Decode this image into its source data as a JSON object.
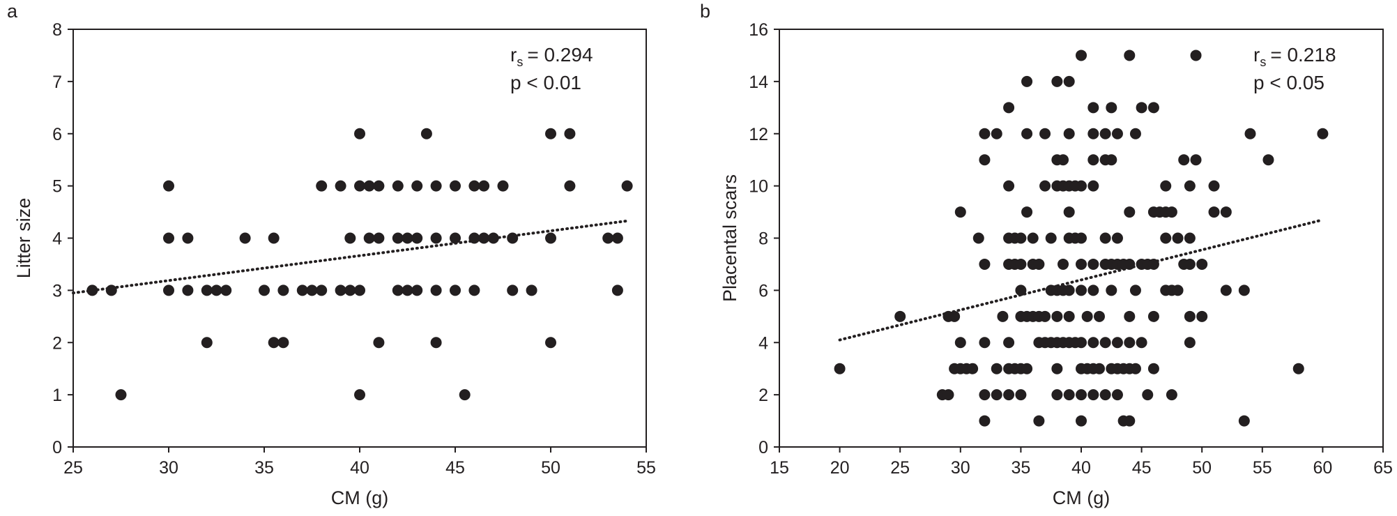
{
  "chart_data": [
    {
      "panel": "a",
      "type": "scatter",
      "xlabel": "CM (g)",
      "ylabel": "Litter size",
      "xlim": [
        25,
        55
      ],
      "ylim": [
        0,
        8
      ],
      "xticks": [
        25,
        30,
        35,
        40,
        45,
        50,
        55
      ],
      "yticks": [
        0,
        1,
        2,
        3,
        4,
        5,
        6,
        7,
        8
      ],
      "grid": false,
      "annotations": {
        "rs_symbol": "r",
        "rs_subscript": "s",
        "rs_value": "= 0.294",
        "p_text": "p < 0.01"
      },
      "trendline": {
        "x": [
          25,
          54
        ],
        "y": [
          2.95,
          4.33
        ]
      },
      "points": [
        [
          26,
          3
        ],
        [
          27,
          3
        ],
        [
          27.5,
          1
        ],
        [
          30,
          5
        ],
        [
          30,
          4
        ],
        [
          30,
          3
        ],
        [
          31,
          4
        ],
        [
          31,
          3
        ],
        [
          32,
          3
        ],
        [
          32,
          2
        ],
        [
          32.5,
          3
        ],
        [
          33,
          3
        ],
        [
          34,
          4
        ],
        [
          35,
          3
        ],
        [
          35.5,
          4
        ],
        [
          35.5,
          2
        ],
        [
          36,
          3
        ],
        [
          36,
          2
        ],
        [
          37,
          3
        ],
        [
          37.5,
          3
        ],
        [
          38,
          5
        ],
        [
          38,
          3
        ],
        [
          39,
          5
        ],
        [
          39,
          3
        ],
        [
          39.5,
          4
        ],
        [
          39.5,
          3
        ],
        [
          40,
          6
        ],
        [
          40,
          5
        ],
        [
          40,
          3
        ],
        [
          40,
          1
        ],
        [
          40.5,
          5
        ],
        [
          40.5,
          4
        ],
        [
          41,
          5
        ],
        [
          41,
          4
        ],
        [
          41,
          2
        ],
        [
          42,
          5
        ],
        [
          42,
          4
        ],
        [
          42,
          3
        ],
        [
          42.5,
          4
        ],
        [
          42.5,
          3
        ],
        [
          43,
          5
        ],
        [
          43,
          4
        ],
        [
          43,
          3
        ],
        [
          43.5,
          6
        ],
        [
          44,
          5
        ],
        [
          44,
          4
        ],
        [
          44,
          3
        ],
        [
          44,
          2
        ],
        [
          45,
          5
        ],
        [
          45,
          4
        ],
        [
          45,
          3
        ],
        [
          45.5,
          1
        ],
        [
          46,
          5
        ],
        [
          46,
          4
        ],
        [
          46,
          3
        ],
        [
          46.5,
          5
        ],
        [
          46.5,
          4
        ],
        [
          47,
          4
        ],
        [
          47.5,
          5
        ],
        [
          48,
          4
        ],
        [
          48,
          3
        ],
        [
          49,
          3
        ],
        [
          50,
          6
        ],
        [
          50,
          4
        ],
        [
          50,
          2
        ],
        [
          51,
          6
        ],
        [
          51,
          5
        ],
        [
          53,
          4
        ],
        [
          53.5,
          4
        ],
        [
          53.5,
          3
        ],
        [
          54,
          5
        ]
      ]
    },
    {
      "panel": "b",
      "type": "scatter",
      "xlabel": "CM (g)",
      "ylabel": "Placental scars",
      "xlim": [
        15,
        65
      ],
      "ylim": [
        0,
        16
      ],
      "xticks": [
        15,
        20,
        25,
        30,
        35,
        40,
        45,
        50,
        55,
        60,
        65
      ],
      "yticks": [
        0,
        2,
        4,
        6,
        8,
        10,
        12,
        14,
        16
      ],
      "grid": false,
      "annotations": {
        "rs_symbol": "r",
        "rs_subscript": "s",
        "rs_value": "= 0.218",
        "p_text": "p < 0.05"
      },
      "trendline": {
        "x": [
          20,
          60
        ],
        "y": [
          4.1,
          8.7
        ]
      },
      "points": [
        [
          20,
          3
        ],
        [
          25,
          5
        ],
        [
          28.5,
          2
        ],
        [
          29,
          2
        ],
        [
          29,
          5
        ],
        [
          29.5,
          3
        ],
        [
          29.5,
          5
        ],
        [
          30,
          3
        ],
        [
          30,
          4
        ],
        [
          30,
          9
        ],
        [
          30.5,
          3
        ],
        [
          31,
          3
        ],
        [
          31.5,
          8
        ],
        [
          32,
          1
        ],
        [
          32,
          2
        ],
        [
          32,
          4
        ],
        [
          32,
          7
        ],
        [
          32,
          11
        ],
        [
          32,
          12
        ],
        [
          33,
          2
        ],
        [
          33,
          3
        ],
        [
          33,
          12
        ],
        [
          33.5,
          5
        ],
        [
          34,
          2
        ],
        [
          34,
          3
        ],
        [
          34,
          4
        ],
        [
          34,
          7
        ],
        [
          34,
          8
        ],
        [
          34,
          10
        ],
        [
          34,
          13
        ],
        [
          34.5,
          3
        ],
        [
          34.5,
          7
        ],
        [
          34.5,
          8
        ],
        [
          35,
          2
        ],
        [
          35,
          3
        ],
        [
          35,
          5
        ],
        [
          35,
          6
        ],
        [
          35,
          7
        ],
        [
          35,
          8
        ],
        [
          35.5,
          3
        ],
        [
          35.5,
          5
        ],
        [
          35.5,
          9
        ],
        [
          35.5,
          12
        ],
        [
          35.5,
          14
        ],
        [
          36,
          5
        ],
        [
          36,
          7
        ],
        [
          36,
          8
        ],
        [
          36.5,
          1
        ],
        [
          36.5,
          4
        ],
        [
          36.5,
          5
        ],
        [
          36.5,
          7
        ],
        [
          37,
          4
        ],
        [
          37,
          5
        ],
        [
          37,
          10
        ],
        [
          37,
          12
        ],
        [
          37.5,
          4
        ],
        [
          37.5,
          6
        ],
        [
          37.5,
          8
        ],
        [
          38,
          2
        ],
        [
          38,
          3
        ],
        [
          38,
          4
        ],
        [
          38,
          5
        ],
        [
          38,
          6
        ],
        [
          38,
          10
        ],
        [
          38,
          11
        ],
        [
          38,
          14
        ],
        [
          38.5,
          4
        ],
        [
          38.5,
          6
        ],
        [
          38.5,
          7
        ],
        [
          38.5,
          10
        ],
        [
          38.5,
          11
        ],
        [
          39,
          2
        ],
        [
          39,
          4
        ],
        [
          39,
          5
        ],
        [
          39,
          6
        ],
        [
          39,
          8
        ],
        [
          39,
          9
        ],
        [
          39,
          10
        ],
        [
          39,
          12
        ],
        [
          39,
          14
        ],
        [
          39.5,
          4
        ],
        [
          39.5,
          8
        ],
        [
          39.5,
          10
        ],
        [
          40,
          1
        ],
        [
          40,
          2
        ],
        [
          40,
          3
        ],
        [
          40,
          4
        ],
        [
          40,
          6
        ],
        [
          40,
          7
        ],
        [
          40,
          8
        ],
        [
          40,
          10
        ],
        [
          40,
          15
        ],
        [
          40.5,
          3
        ],
        [
          40.5,
          5
        ],
        [
          41,
          2
        ],
        [
          41,
          3
        ],
        [
          41,
          4
        ],
        [
          41,
          6
        ],
        [
          41,
          7
        ],
        [
          41,
          10
        ],
        [
          41,
          11
        ],
        [
          41,
          12
        ],
        [
          41,
          13
        ],
        [
          41.5,
          3
        ],
        [
          41.5,
          5
        ],
        [
          42,
          2
        ],
        [
          42,
          4
        ],
        [
          42,
          7
        ],
        [
          42,
          8
        ],
        [
          42,
          11
        ],
        [
          42,
          12
        ],
        [
          42.5,
          3
        ],
        [
          42.5,
          6
        ],
        [
          42.5,
          7
        ],
        [
          42.5,
          11
        ],
        [
          42.5,
          13
        ],
        [
          43,
          2
        ],
        [
          43,
          3
        ],
        [
          43,
          4
        ],
        [
          43,
          7
        ],
        [
          43,
          8
        ],
        [
          43,
          12
        ],
        [
          43.5,
          1
        ],
        [
          43.5,
          3
        ],
        [
          43.5,
          7
        ],
        [
          44,
          1
        ],
        [
          44,
          3
        ],
        [
          44,
          4
        ],
        [
          44,
          5
        ],
        [
          44,
          7
        ],
        [
          44,
          9
        ],
        [
          44,
          15
        ],
        [
          44.5,
          3
        ],
        [
          44.5,
          6
        ],
        [
          44.5,
          12
        ],
        [
          45,
          4
        ],
        [
          45,
          7
        ],
        [
          45,
          13
        ],
        [
          45.5,
          2
        ],
        [
          45.5,
          7
        ],
        [
          46,
          3
        ],
        [
          46,
          5
        ],
        [
          46,
          7
        ],
        [
          46,
          9
        ],
        [
          46,
          13
        ],
        [
          46.5,
          9
        ],
        [
          47,
          6
        ],
        [
          47,
          8
        ],
        [
          47,
          9
        ],
        [
          47,
          10
        ],
        [
          47.5,
          2
        ],
        [
          47.5,
          6
        ],
        [
          47.5,
          9
        ],
        [
          48,
          6
        ],
        [
          48,
          8
        ],
        [
          48.5,
          7
        ],
        [
          48.5,
          11
        ],
        [
          49,
          4
        ],
        [
          49,
          5
        ],
        [
          49,
          7
        ],
        [
          49,
          8
        ],
        [
          49,
          10
        ],
        [
          49.5,
          11
        ],
        [
          49.5,
          15
        ],
        [
          50,
          5
        ],
        [
          50,
          7
        ],
        [
          51,
          9
        ],
        [
          51,
          10
        ],
        [
          52,
          6
        ],
        [
          52,
          9
        ],
        [
          53.5,
          1
        ],
        [
          53.5,
          6
        ],
        [
          54,
          12
        ],
        [
          55.5,
          11
        ],
        [
          58,
          3
        ],
        [
          60,
          12
        ]
      ]
    }
  ]
}
